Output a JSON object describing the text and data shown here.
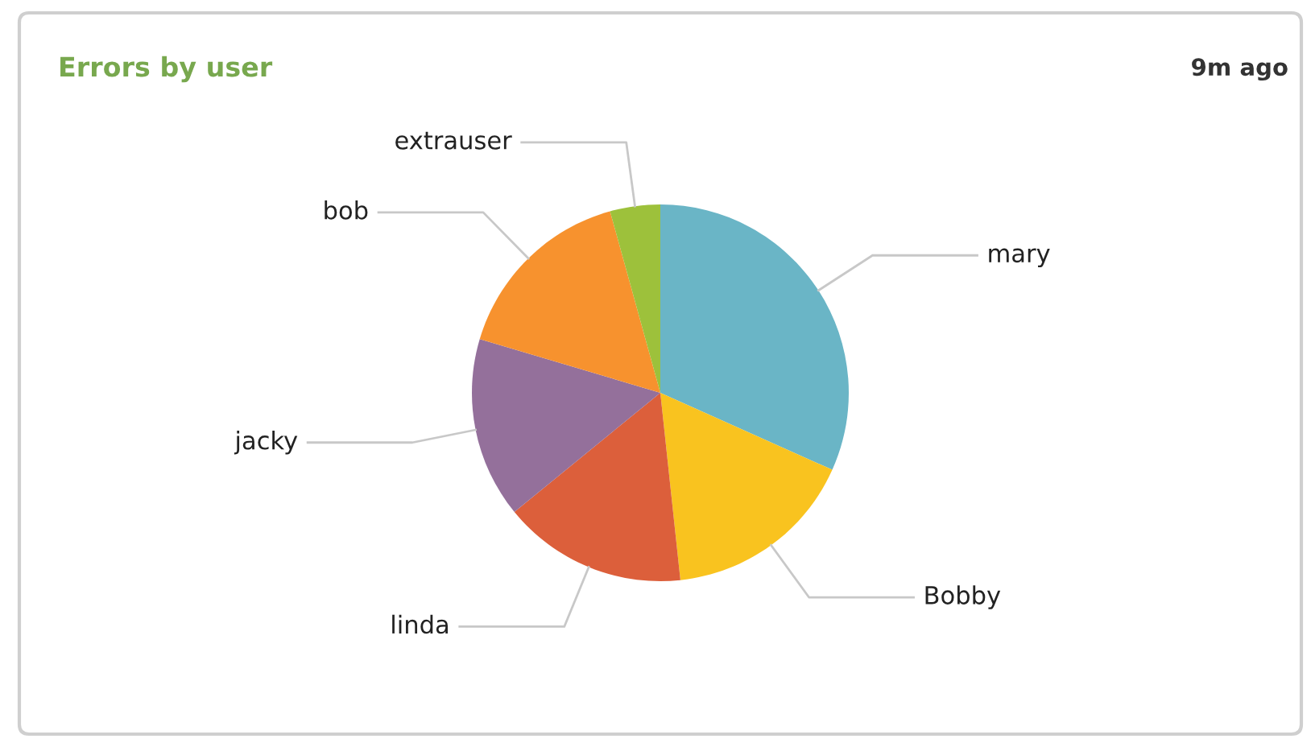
{
  "chart_data": {
    "type": "pie",
    "title": "Errors by user",
    "annotations": [
      "9m ago"
    ],
    "categories": [
      "mary",
      "Bobby",
      "linda",
      "jacky",
      "bob",
      "extrauser"
    ],
    "values": [
      31.7,
      16.6,
      15.8,
      15.5,
      16.1,
      4.3
    ],
    "colors": [
      "#6ab5c6",
      "#f9c31f",
      "#dc5f3b",
      "#94709b",
      "#f7922e",
      "#9dc13b"
    ],
    "legend": false
  }
}
